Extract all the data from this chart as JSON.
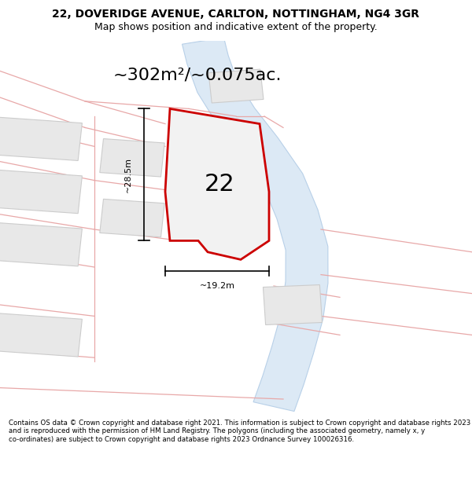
{
  "title": "22, DOVERIDGE AVENUE, CARLTON, NOTTINGHAM, NG4 3GR",
  "subtitle": "Map shows position and indicative extent of the property.",
  "area_text": "~302m²/~0.075ac.",
  "label_number": "22",
  "dim_width": "~19.2m",
  "dim_height": "~28.5m",
  "footer": "Contains OS data © Crown copyright and database right 2021. This information is subject to Crown copyright and database rights 2023 and is reproduced with the permission of HM Land Registry. The polygons (including the associated geometry, namely x, y co-ordinates) are subject to Crown copyright and database rights 2023 Ordnance Survey 100026316.",
  "bg_color": "#ffffff",
  "map_bg": "#f5f5f5",
  "road_fill": "#dce9f5",
  "road_stroke": "#b8d0e8",
  "subject_fill": "#f0f0f0",
  "subject_stroke": "#cc0000",
  "boundary_stroke": "#e8a8a8",
  "plot_fill": "#e8e8e8",
  "plot_stroke": "#cccccc",
  "figsize": [
    6.0,
    6.25
  ],
  "dpi": 100,
  "title_fontsize": 10,
  "subtitle_fontsize": 9,
  "area_fontsize": 16,
  "number_fontsize": 22,
  "dim_fontsize": 8,
  "footer_fontsize": 6.2
}
